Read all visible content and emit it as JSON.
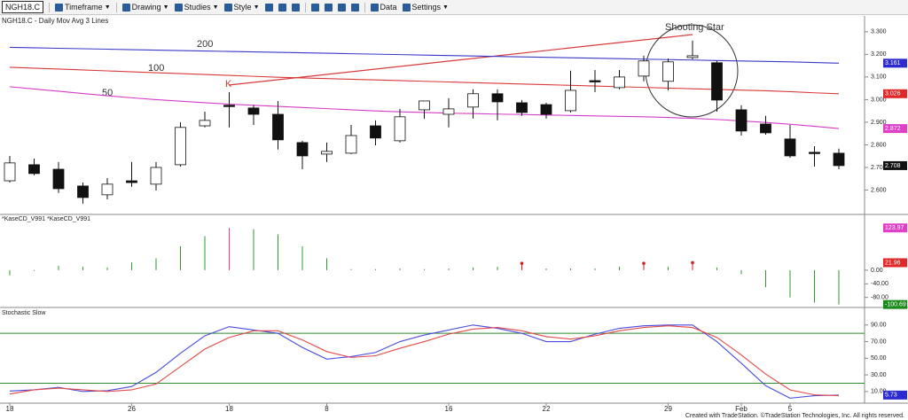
{
  "toolbar": {
    "symbol": "NGH18.C",
    "items": [
      "Timeframe",
      "Drawing",
      "Studies",
      "Style",
      "Data",
      "Settings"
    ]
  },
  "footer": "Created with TradeStation. ©TradeStation Technologies, Inc. All rights reserved.",
  "chart_data": [
    {
      "type": "candlestick",
      "title": "NGH18.C - Daily  Mov Avg 3 Lines",
      "categories": [
        "18",
        null,
        null,
        null,
        null,
        "26",
        null,
        null,
        null,
        "18",
        null,
        null,
        null,
        "8",
        null,
        null,
        null,
        null,
        "16",
        null,
        null,
        null,
        "22",
        null,
        null,
        null,
        null,
        "29",
        null,
        null,
        "Feb",
        null,
        "5",
        null,
        null
      ],
      "open": [
        2.641,
        2.712,
        2.692,
        2.618,
        2.579,
        2.641,
        2.626,
        2.712,
        2.884,
        2.975,
        2.963,
        2.935,
        2.81,
        2.759,
        2.763,
        2.884,
        2.818,
        2.955,
        2.935,
        2.967,
        3.026,
        2.986,
        2.978,
        2.951,
        3.084,
        3.053,
        3.104,
        3.081,
        3.186,
        3.163,
        2.955,
        2.892,
        2.826,
        2.767,
        2.763
      ],
      "high": [
        2.751,
        2.739,
        2.724,
        2.633,
        2.653,
        2.724,
        2.724,
        2.9,
        2.947,
        3.033,
        2.975,
        2.994,
        2.818,
        2.81,
        2.888,
        2.908,
        2.959,
        2.994,
        3.006,
        3.045,
        3.045,
        2.998,
        2.986,
        3.128,
        3.131,
        3.131,
        3.194,
        3.182,
        3.261,
        3.171,
        2.975,
        2.928,
        2.888,
        2.794,
        2.783
      ],
      "low": [
        2.633,
        2.665,
        2.587,
        2.54,
        2.559,
        2.614,
        2.598,
        2.704,
        2.877,
        2.877,
        2.888,
        2.779,
        2.692,
        2.724,
        2.759,
        2.798,
        2.81,
        2.916,
        2.877,
        2.916,
        2.908,
        2.928,
        2.916,
        2.943,
        3.033,
        3.045,
        3.081,
        3.041,
        3.178,
        2.947,
        2.841,
        2.845,
        2.743,
        2.704,
        2.692
      ],
      "close": [
        2.72,
        2.673,
        2.606,
        2.567,
        2.626,
        2.633,
        2.7,
        2.877,
        2.908,
        2.971,
        2.935,
        2.822,
        2.751,
        2.771,
        2.841,
        2.83,
        2.924,
        2.994,
        2.959,
        3.026,
        2.99,
        2.943,
        2.935,
        3.041,
        3.081,
        3.1,
        3.171,
        3.167,
        3.194,
        2.998,
        2.861,
        2.853,
        2.751,
        2.763,
        2.708
      ],
      "series": [
        {
          "name": "200",
          "color": "#3a3ac8",
          "values": [
            3.231,
            3.229,
            3.227,
            3.225,
            3.223,
            3.221,
            3.219,
            3.217,
            3.215,
            3.213,
            3.211,
            3.209,
            3.207,
            3.205,
            3.203,
            3.201,
            3.199,
            3.197,
            3.195,
            3.193,
            3.191,
            3.189,
            3.187,
            3.185,
            3.183,
            3.181,
            3.179,
            3.177,
            3.175,
            3.173,
            3.171,
            3.169,
            3.167,
            3.164,
            3.161
          ]
        },
        {
          "name": "100",
          "color": "#d83a3a",
          "values": [
            3.143,
            3.139,
            3.135,
            3.131,
            3.127,
            3.123,
            3.119,
            3.115,
            3.111,
            3.107,
            3.103,
            3.099,
            3.096,
            3.093,
            3.09,
            3.087,
            3.084,
            3.081,
            3.078,
            3.075,
            3.072,
            3.069,
            3.066,
            3.063,
            3.06,
            3.057,
            3.054,
            3.051,
            3.048,
            3.045,
            3.042,
            3.039,
            3.035,
            3.03,
            3.026
          ]
        },
        {
          "name": "50",
          "color": "#d63cc8",
          "values": [
            3.057,
            3.047,
            3.037,
            3.027,
            3.017,
            3.008,
            3.0,
            2.993,
            2.986,
            2.98,
            2.975,
            2.97,
            2.965,
            2.96,
            2.955,
            2.95,
            2.946,
            2.943,
            2.94,
            2.938,
            2.936,
            2.934,
            2.932,
            2.93,
            2.928,
            2.926,
            2.924,
            2.921,
            2.917,
            2.912,
            2.906,
            2.899,
            2.891,
            2.882,
            2.872
          ]
        }
      ],
      "annotations": [
        "K",
        "Shooting Star"
      ],
      "ylim": [
        2.5,
        3.37
      ],
      "yticks": [
        {
          "value": 3.3,
          "label": "3.300"
        },
        {
          "value": 3.2,
          "label": "3.200"
        },
        {
          "value": 3.1,
          "label": "3.100"
        },
        {
          "value": 3.0,
          "label": "3.000"
        },
        {
          "value": 2.9,
          "label": "2.900"
        },
        {
          "value": 2.8,
          "label": "2.800"
        },
        {
          "value": 2.7,
          "label": "2.700"
        },
        {
          "value": 2.6,
          "label": "2.600"
        }
      ],
      "axis_markers": [
        {
          "value": 3.161,
          "label": "3.161",
          "color": "#2b2bd0"
        },
        {
          "value": 3.026,
          "label": "3.026",
          "color": "#e02828"
        },
        {
          "value": 2.872,
          "label": "2.872",
          "color": "#e040c8"
        },
        {
          "value": 2.708,
          "label": "2.708",
          "color": "#111111"
        }
      ]
    },
    {
      "type": "histogram-bar",
      "title": "*KaseCD_V991  *KaseCD_V991",
      "series": [
        {
          "color": "#2e9a2e",
          "values": [
            -15,
            -2,
            13,
            10,
            8,
            23,
            35,
            70,
            100,
            null,
            120,
            105,
            70,
            35,
            3,
            3,
            5,
            3,
            5,
            8,
            10,
            null,
            5,
            5,
            5,
            10,
            null,
            10,
            null,
            8,
            -12,
            -50,
            -80,
            -95,
            -100.69
          ]
        },
        {
          "colors": [
            null,
            null,
            null,
            null,
            null,
            null,
            null,
            null,
            null,
            "#e0409a",
            null,
            null,
            null,
            null,
            null,
            null,
            null,
            null,
            null,
            null,
            null,
            "#d62020",
            null,
            null,
            null,
            null,
            "#d62020",
            null,
            "#d62020",
            null,
            null,
            null,
            null,
            null,
            null
          ],
          "values": [
            null,
            null,
            null,
            null,
            null,
            null,
            null,
            null,
            null,
            123.97,
            null,
            null,
            null,
            null,
            null,
            null,
            null,
            null,
            null,
            null,
            null,
            20,
            null,
            null,
            null,
            null,
            20,
            null,
            21.96,
            null,
            null,
            null,
            null,
            null,
            null
          ]
        }
      ],
      "ylim": [
        -112,
        161
      ],
      "yticks": [
        {
          "value": 0,
          "label": "0.00"
        },
        {
          "value": -40,
          "label": "-40.00"
        },
        {
          "value": -80,
          "label": "-80.00"
        }
      ],
      "axis_markers": [
        {
          "value": 123.97,
          "label": "123.97",
          "color": "#e040c8"
        },
        {
          "value": 21.96,
          "label": "21.96",
          "color": "#e02828"
        },
        {
          "value": -100.69,
          "label": "-100.69",
          "color": "#1a8a1a"
        }
      ]
    },
    {
      "type": "line",
      "title": "Stochastic Slow",
      "series": [
        {
          "color": "#4a4ae0",
          "values": [
            10.6,
            12,
            15,
            10,
            11,
            16,
            33,
            56,
            77,
            88,
            84,
            80,
            63,
            49,
            52,
            57,
            70,
            78,
            84,
            90,
            86,
            80,
            70,
            70,
            79,
            86,
            89,
            90,
            90,
            70,
            44,
            17,
            2,
            5,
            5.73
          ]
        },
        {
          "color": "#e04a4a",
          "values": [
            7,
            12,
            14,
            12,
            10,
            12,
            19,
            40,
            61,
            75,
            83,
            83,
            72,
            58,
            51,
            53,
            62,
            70,
            79,
            85,
            87,
            83,
            76,
            73,
            77,
            83,
            87,
            89,
            87,
            75,
            54,
            31,
            12,
            6,
            5
          ]
        }
      ],
      "hlines": [
        80,
        20
      ],
      "hline_color": "#2e8a2e",
      "ylim": [
        -4,
        110
      ],
      "yticks": [
        {
          "value": 90,
          "label": "90.00"
        },
        {
          "value": 70,
          "label": "70.00"
        },
        {
          "value": 50,
          "label": "50.00"
        },
        {
          "value": 30,
          "label": "30.00"
        },
        {
          "value": 10,
          "label": "10.00"
        }
      ],
      "axis_markers": [
        {
          "value": 5.73,
          "label": "5.73",
          "color": "#2b2bd0"
        }
      ]
    }
  ]
}
